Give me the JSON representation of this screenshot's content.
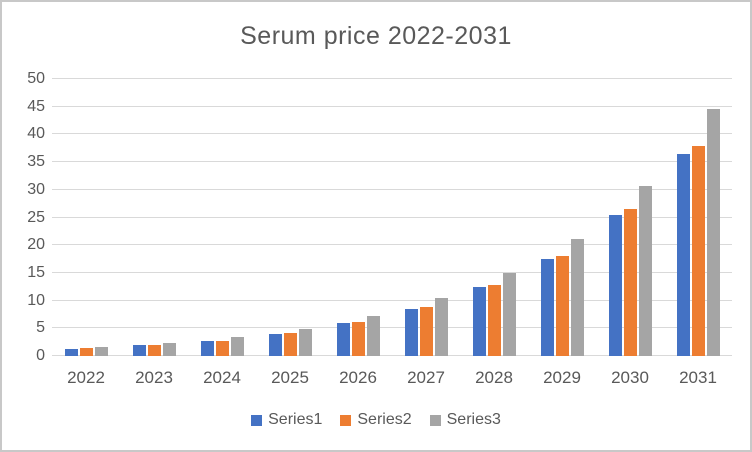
{
  "window": {
    "background_color": "#ffffff",
    "border_color": "#c8c8c8"
  },
  "chart_data": {
    "type": "bar",
    "title": "Serum price 2022-2031",
    "categories": [
      "2022",
      "2023",
      "2024",
      "2025",
      "2026",
      "2027",
      "2028",
      "2029",
      "2030",
      "2031"
    ],
    "series": [
      {
        "name": "Series1",
        "color": "#4472C4",
        "values": [
          1.3,
          2.0,
          2.7,
          4.0,
          6.0,
          8.4,
          12.4,
          17.6,
          25.5,
          36.4
        ]
      },
      {
        "name": "Series2",
        "color": "#ED7D31",
        "values": [
          1.5,
          2.0,
          2.7,
          4.1,
          6.1,
          8.8,
          12.8,
          18.1,
          26.5,
          37.9
        ]
      },
      {
        "name": "Series3",
        "color": "#A5A5A5",
        "values": [
          1.7,
          2.4,
          3.4,
          4.9,
          7.2,
          10.5,
          14.9,
          21.2,
          30.6,
          44.5
        ]
      }
    ],
    "xlabel": "",
    "ylabel": "",
    "ylim": [
      0,
      50
    ],
    "yticks": [
      0,
      5,
      10,
      15,
      20,
      25,
      30,
      35,
      40,
      45,
      50
    ],
    "grid": true,
    "legend_position": "bottom",
    "text_color": "#595959",
    "gridline_color": "#d9d9d9"
  }
}
